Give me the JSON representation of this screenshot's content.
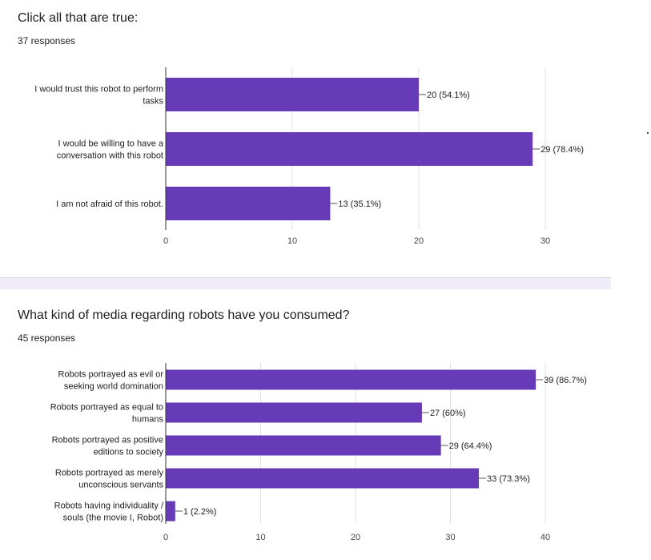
{
  "colors": {
    "bar": "#673ab7",
    "grid": "#e0e0e0",
    "axis": "#333333",
    "text": "#202124"
  },
  "questions": [
    {
      "title": "Click all that are true:",
      "responses": "37 responses",
      "chart_data": {
        "type": "bar",
        "orientation": "horizontal",
        "categories": [
          [
            "I would trust this robot to perform",
            "tasks"
          ],
          [
            "I would be willing to have a",
            "conversation with this robot"
          ],
          [
            "I am not afraid of this robot."
          ]
        ],
        "values": [
          20,
          29,
          13
        ],
        "data_labels": [
          "20 (54.1%)",
          "29 (78.4%)",
          "13 (35.1%)"
        ],
        "xlim": [
          0,
          30
        ],
        "xticks": [
          0,
          10,
          20,
          30
        ],
        "grid": true
      }
    },
    {
      "title": "What kind of media regarding robots have you consumed?",
      "responses": "45 responses",
      "chart_data": {
        "type": "bar",
        "orientation": "horizontal",
        "categories": [
          [
            "Robots portrayed as evil or",
            "seeking world domination"
          ],
          [
            "Robots portrayed as equal to",
            "humans"
          ],
          [
            "Robots portrayed as positive",
            "editions to society"
          ],
          [
            "Robots portrayed as merely",
            "unconscious servants"
          ],
          [
            "Robots having individuality /",
            "souls (the movie I, Robot)"
          ]
        ],
        "values": [
          39,
          27,
          29,
          33,
          1
        ],
        "data_labels": [
          "39 (86.7%)",
          "27 (60%)",
          "29 (64.4%)",
          "33 (73.3%)",
          "1 (2.2%)"
        ],
        "xlim": [
          0,
          40
        ],
        "xticks": [
          0,
          10,
          20,
          30,
          40
        ],
        "grid": true
      }
    }
  ]
}
